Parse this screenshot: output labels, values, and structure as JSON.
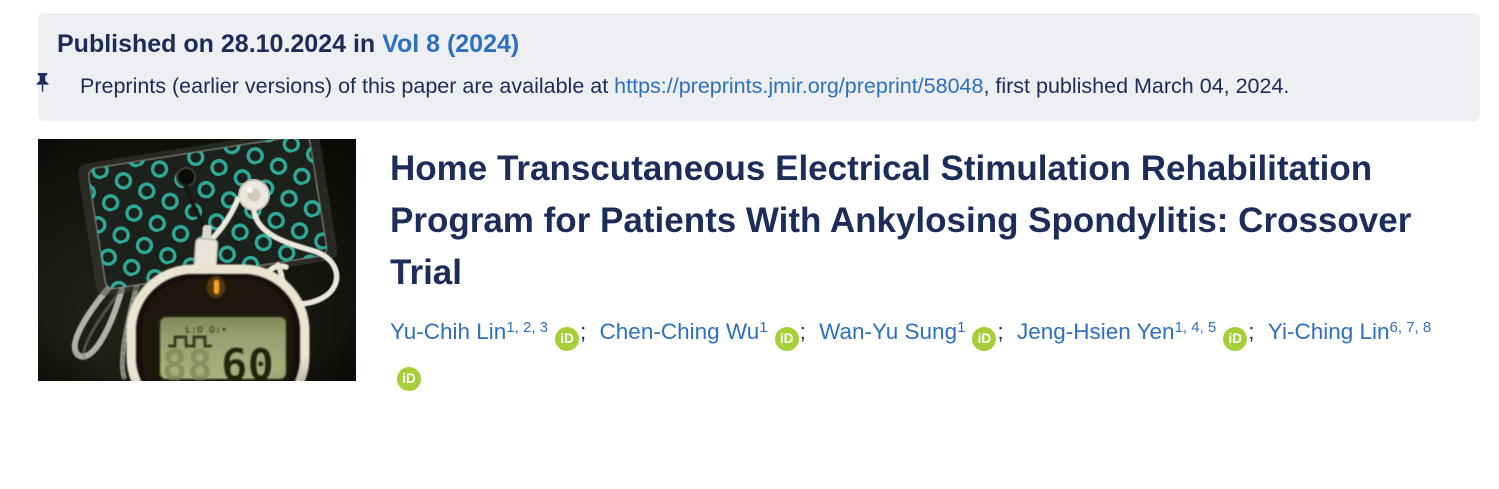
{
  "colors": {
    "panel_bg": "#edeff3",
    "navy_text": "#1c2b59",
    "link_blue": "#2e70bf",
    "orcid_green": "#a6ce39",
    "led_orange": "#f6a21c",
    "electrode_teal": "#2fb0a0"
  },
  "published_bar": {
    "prefix_text": "Published on 28.10.2024 in ",
    "volume_link": "Vol 8 (2024)",
    "preprint_before": "Preprints (earlier versions) of this paper are available at ",
    "preprint_link": "https://preprints.jmir.org/preprint/58048",
    "preprint_after": ", first published March 04, 2024."
  },
  "article": {
    "title": "Home Transcutaneous Electrical Stimulation Rehabilitation Program for Patients With Ankylosing Spondylitis: Crossover Trial",
    "authors": [
      {
        "name": "Yu-Chih Lin",
        "affiliations": "1, 2, 3"
      },
      {
        "name": "Chen-Ching Wu",
        "affiliations": "1"
      },
      {
        "name": "Wan-Yu Sung",
        "affiliations": "1"
      },
      {
        "name": "Jeng-Hsien Yen",
        "affiliations": "1, 4, 5"
      },
      {
        "name": "Yi-Ching Lin",
        "affiliations": "6, 7, 8"
      }
    ],
    "author_separator": ";",
    "thumbnail": {
      "lcd_value": "60"
    }
  },
  "icons": {
    "orcid_icon_text": "iD"
  }
}
